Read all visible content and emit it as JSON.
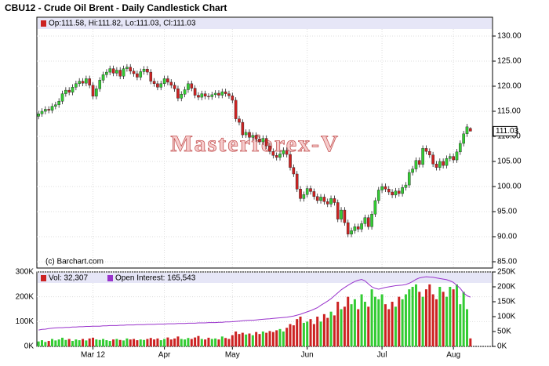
{
  "chart_data": [
    {
      "type": "candlestick",
      "title": "CBU12 - Crude Oil Brent - Daily Candlestick Chart",
      "legend_text": "Op:111.58, Hi:111.82, Lo:111.03, Cl:111.03",
      "watermark": "Masterforex-V",
      "credit": "(c) Barchart.com",
      "up_color": "#33cc33",
      "down_color": "#cc2222",
      "legend_color": "#cc2222",
      "grid": true,
      "ylim": [
        83.75,
        133.75
      ],
      "yticks": [
        {
          "value": 85,
          "label": "85.00"
        },
        {
          "value": 90,
          "label": "90.00"
        },
        {
          "value": 95,
          "label": "95.00"
        },
        {
          "value": 100,
          "label": "100.00"
        },
        {
          "value": 105,
          "label": "105.00"
        },
        {
          "value": 110,
          "label": "110.00"
        },
        {
          "value": 115,
          "label": "115.00"
        },
        {
          "value": 120,
          "label": "120.00"
        },
        {
          "value": 125,
          "label": "125.00"
        },
        {
          "value": 130,
          "label": "130.00"
        }
      ],
      "open": [
        114.0,
        114.5,
        115.0,
        115.4,
        115.2,
        116.0,
        116.3,
        117.0,
        118.5,
        119.2,
        118.8,
        119.8,
        120.5,
        121.0,
        120.6,
        121.5,
        120.2,
        118.0,
        119.5,
        121.2,
        122.3,
        122.8,
        123.5,
        122.6,
        123.2,
        122.0,
        123.5,
        123.8,
        123.0,
        122.5,
        121.8,
        122.9,
        123.4,
        122.8,
        121.0,
        120.5,
        119.8,
        120.5,
        121.5,
        120.8,
        120.2,
        119.5,
        117.6,
        118.4,
        119.3,
        120.5,
        119.6,
        118.2,
        117.8,
        118.5,
        118.0,
        117.9,
        118.3,
        118.6,
        118.2,
        118.9,
        118.5,
        118.1,
        117.2,
        113.5,
        112.8,
        110.3,
        110.8,
        109.8,
        110.2,
        109.5,
        108.9,
        109.6,
        108.1,
        107.0,
        106.2,
        105.8,
        106.5,
        107.2,
        106.4,
        103.8,
        102.5,
        99.5,
        97.6,
        98.4,
        99.6,
        99.0,
        98.0,
        97.2,
        97.9,
        97.0,
        96.5,
        97.6,
        96.8,
        93.5,
        95.3,
        92.8,
        90.5,
        91.2,
        92.0,
        91.5,
        92.6,
        93.8,
        92.0,
        94.5,
        97.2,
        99.3,
        100.0,
        99.5,
        98.9,
        98.3,
        99.1,
        98.6,
        99.8,
        100.3,
        102.8,
        103.5,
        105.2,
        104.4,
        107.6,
        107.0,
        106.3,
        104.5,
        103.8,
        105.0,
        104.2,
        105.6,
        106.0,
        105.3,
        106.9,
        108.6,
        110.5,
        111.58
      ],
      "high": [
        115.1,
        115.6,
        116.0,
        116.0,
        116.6,
        116.9,
        117.6,
        119.1,
        119.8,
        119.8,
        120.4,
        121.1,
        121.6,
        121.6,
        122.1,
        122.1,
        120.8,
        120.1,
        121.8,
        122.9,
        123.4,
        124.1,
        124.1,
        123.8,
        123.8,
        124.1,
        124.4,
        124.4,
        123.6,
        123.1,
        123.5,
        124.0,
        124.0,
        123.4,
        121.6,
        121.1,
        121.1,
        122.1,
        122.1,
        121.4,
        120.8,
        120.1,
        119.0,
        119.9,
        121.1,
        121.1,
        120.2,
        118.8,
        119.1,
        119.1,
        118.6,
        118.9,
        119.2,
        119.2,
        119.5,
        119.5,
        119.1,
        118.7,
        117.8,
        114.1,
        113.4,
        111.4,
        111.4,
        110.8,
        110.8,
        110.1,
        110.2,
        110.2,
        108.7,
        107.6,
        106.8,
        107.1,
        107.8,
        107.8,
        107.0,
        104.4,
        103.1,
        100.1,
        99.0,
        100.2,
        100.2,
        99.6,
        98.6,
        98.5,
        98.5,
        97.6,
        98.2,
        98.2,
        97.4,
        95.9,
        95.9,
        93.4,
        91.8,
        92.6,
        92.6,
        93.2,
        94.4,
        94.4,
        95.1,
        97.8,
        99.9,
        100.6,
        100.6,
        100.1,
        99.5,
        99.7,
        99.7,
        100.4,
        100.9,
        103.4,
        104.1,
        105.8,
        105.8,
        108.2,
        108.2,
        107.6,
        106.9,
        105.1,
        105.6,
        105.6,
        106.2,
        106.6,
        106.6,
        107.5,
        109.2,
        111.1,
        112.5,
        111.82
      ],
      "low": [
        113.4,
        113.9,
        114.4,
        114.6,
        114.6,
        115.4,
        115.7,
        116.4,
        117.9,
        118.2,
        118.2,
        119.2,
        119.9,
        120.0,
        120.0,
        119.6,
        117.4,
        117.4,
        118.9,
        120.6,
        121.7,
        122.2,
        122.0,
        122.0,
        121.4,
        121.4,
        122.9,
        122.4,
        121.9,
        121.2,
        121.2,
        122.3,
        122.2,
        120.4,
        119.9,
        119.2,
        119.2,
        119.9,
        120.2,
        119.6,
        118.9,
        117.0,
        117.0,
        117.8,
        118.7,
        119.0,
        117.6,
        117.2,
        117.2,
        117.4,
        117.3,
        117.3,
        117.7,
        117.6,
        117.6,
        117.9,
        117.5,
        116.6,
        112.9,
        112.2,
        109.7,
        109.7,
        109.2,
        109.2,
        108.9,
        108.3,
        108.3,
        107.5,
        106.4,
        105.6,
        105.2,
        105.2,
        105.9,
        105.8,
        103.2,
        101.9,
        98.9,
        97.0,
        97.0,
        97.8,
        98.4,
        97.4,
        96.6,
        96.6,
        96.4,
        95.9,
        95.9,
        96.2,
        92.9,
        92.9,
        92.2,
        89.9,
        89.9,
        90.6,
        90.9,
        90.9,
        92.0,
        91.4,
        91.4,
        93.9,
        96.6,
        98.7,
        98.9,
        98.3,
        97.7,
        97.7,
        98.0,
        98.0,
        99.2,
        99.7,
        102.2,
        102.9,
        103.8,
        103.8,
        106.4,
        105.7,
        103.9,
        103.2,
        103.2,
        103.6,
        103.6,
        105.0,
        104.7,
        104.7,
        106.3,
        108.0,
        109.9,
        111.03
      ],
      "close": [
        114.5,
        115.0,
        115.4,
        115.2,
        116.0,
        116.3,
        117.0,
        118.5,
        119.2,
        118.8,
        119.8,
        120.5,
        121.0,
        120.6,
        121.5,
        120.2,
        118.0,
        119.5,
        121.2,
        122.3,
        122.8,
        123.5,
        122.6,
        123.2,
        122.0,
        123.5,
        123.8,
        123.0,
        122.5,
        121.8,
        122.9,
        123.4,
        122.8,
        121.0,
        120.5,
        119.8,
        120.5,
        121.5,
        120.8,
        120.2,
        119.5,
        117.6,
        118.4,
        119.3,
        120.5,
        119.6,
        118.2,
        117.8,
        118.5,
        118.0,
        117.9,
        118.3,
        118.6,
        118.2,
        118.9,
        118.5,
        118.1,
        117.2,
        113.5,
        112.8,
        110.3,
        110.8,
        109.8,
        110.2,
        109.5,
        108.9,
        109.6,
        108.1,
        107.0,
        106.2,
        105.8,
        106.5,
        107.2,
        106.4,
        103.8,
        102.5,
        99.5,
        97.6,
        98.4,
        99.6,
        99.0,
        98.0,
        97.2,
        97.9,
        97.0,
        96.5,
        97.6,
        96.8,
        93.5,
        95.3,
        92.8,
        90.5,
        91.2,
        92.0,
        91.5,
        92.6,
        93.8,
        92.0,
        94.5,
        97.2,
        99.3,
        100.0,
        99.5,
        98.9,
        98.3,
        99.1,
        98.6,
        99.8,
        100.3,
        102.8,
        103.5,
        105.2,
        104.4,
        107.6,
        107.0,
        106.3,
        104.5,
        103.8,
        105.0,
        104.2,
        105.6,
        106.0,
        105.3,
        106.9,
        108.6,
        110.5,
        111.9,
        111.03
      ]
    },
    {
      "type": "bar",
      "xlim": [
        -0.5,
        133.5
      ],
      "xticks": [
        {
          "value": 16,
          "label": "Mar 12"
        },
        {
          "value": 37,
          "label": "Apr"
        },
        {
          "value": 57,
          "label": "May"
        },
        {
          "value": 79,
          "label": "Jun"
        },
        {
          "value": 101,
          "label": "Jul"
        },
        {
          "value": 122,
          "label": "Aug"
        }
      ],
      "ylim": [
        0,
        300000
      ],
      "yticks": [
        {
          "value": 0,
          "label": "0K"
        },
        {
          "value": 100000,
          "label": "100K"
        },
        {
          "value": 200000,
          "label": "200K"
        },
        {
          "value": 300000,
          "label": "300K"
        }
      ],
      "y2lim": [
        0,
        250000
      ],
      "y2ticks": [
        {
          "value": 0,
          "label": "0K"
        },
        {
          "value": 50000,
          "label": "50K"
        },
        {
          "value": 100000,
          "label": "100K"
        },
        {
          "value": 150000,
          "label": "150K"
        },
        {
          "value": 200000,
          "label": "200K"
        },
        {
          "value": 250000,
          "label": "250K"
        }
      ],
      "grid": true,
      "series": [
        {
          "name": "Vol: 32,307",
          "color": "#cc2222",
          "values": [
            20000,
            25000,
            18000,
            22000,
            30000,
            24000,
            28000,
            35000,
            26000,
            30000,
            22000,
            28000,
            25000,
            30000,
            24000,
            32000,
            35000,
            28000,
            26000,
            30000,
            25000,
            22000,
            28000,
            30000,
            26000,
            24000,
            32000,
            28000,
            30000,
            25000,
            28000,
            26000,
            30000,
            34000,
            28000,
            32000,
            25000,
            30000,
            36000,
            28000,
            32000,
            40000,
            30000,
            28000,
            34000,
            30000,
            36000,
            42000,
            30000,
            28000,
            35000,
            30000,
            32000,
            28000,
            40000,
            34000,
            30000,
            45000,
            60000,
            50000,
            55000,
            48000,
            52000,
            45000,
            58000,
            50000,
            60000,
            55000,
            62000,
            58000,
            65000,
            70000,
            60000,
            75000,
            90000,
            85000,
            110000,
            120000,
            95000,
            100000,
            110000,
            90000,
            120000,
            100000,
            130000,
            115000,
            140000,
            125000,
            180000,
            150000,
            160000,
            200000,
            170000,
            190000,
            150000,
            210000,
            180000,
            160000,
            230000,
            200000,
            190000,
            210000,
            170000,
            150000,
            180000,
            160000,
            200000,
            190000,
            210000,
            230000,
            240000,
            250000,
            220000,
            200000,
            230000,
            250000,
            210000,
            190000,
            240000,
            220000,
            200000,
            240000,
            230000,
            250000,
            170000,
            220000,
            150000,
            32307
          ]
        },
        {
          "name": "Open Interest: 165,543",
          "color": "#9933cc",
          "axis": "y2",
          "values": [
            55000,
            57000,
            58000,
            60000,
            61000,
            62000,
            63000,
            63000,
            64000,
            64000,
            65000,
            65000,
            66000,
            66000,
            67000,
            67000,
            68000,
            68000,
            68000,
            69000,
            69000,
            70000,
            70000,
            70000,
            71000,
            71000,
            72000,
            72000,
            72000,
            73000,
            73000,
            73000,
            74000,
            74000,
            74000,
            75000,
            75000,
            75000,
            76000,
            76000,
            76000,
            77000,
            77000,
            77000,
            78000,
            78000,
            78000,
            79000,
            79000,
            79000,
            80000,
            80000,
            80000,
            81000,
            81000,
            82000,
            82000,
            83000,
            84000,
            85000,
            86000,
            87000,
            88000,
            88000,
            89000,
            90000,
            91000,
            92000,
            93000,
            94000,
            95000,
            96000,
            97000,
            98000,
            100000,
            102000,
            105000,
            108000,
            112000,
            116000,
            120000,
            125000,
            130000,
            138000,
            145000,
            152000,
            160000,
            170000,
            180000,
            190000,
            198000,
            205000,
            212000,
            218000,
            222000,
            225000,
            220000,
            210000,
            200000,
            195000,
            192000,
            195000,
            198000,
            200000,
            202000,
            204000,
            205000,
            206000,
            208000,
            212000,
            218000,
            225000,
            230000,
            232000,
            234000,
            233000,
            232000,
            230000,
            228000,
            226000,
            224000,
            220000,
            215000,
            205000,
            195000,
            180000,
            170000,
            165543
          ]
        }
      ]
    }
  ]
}
